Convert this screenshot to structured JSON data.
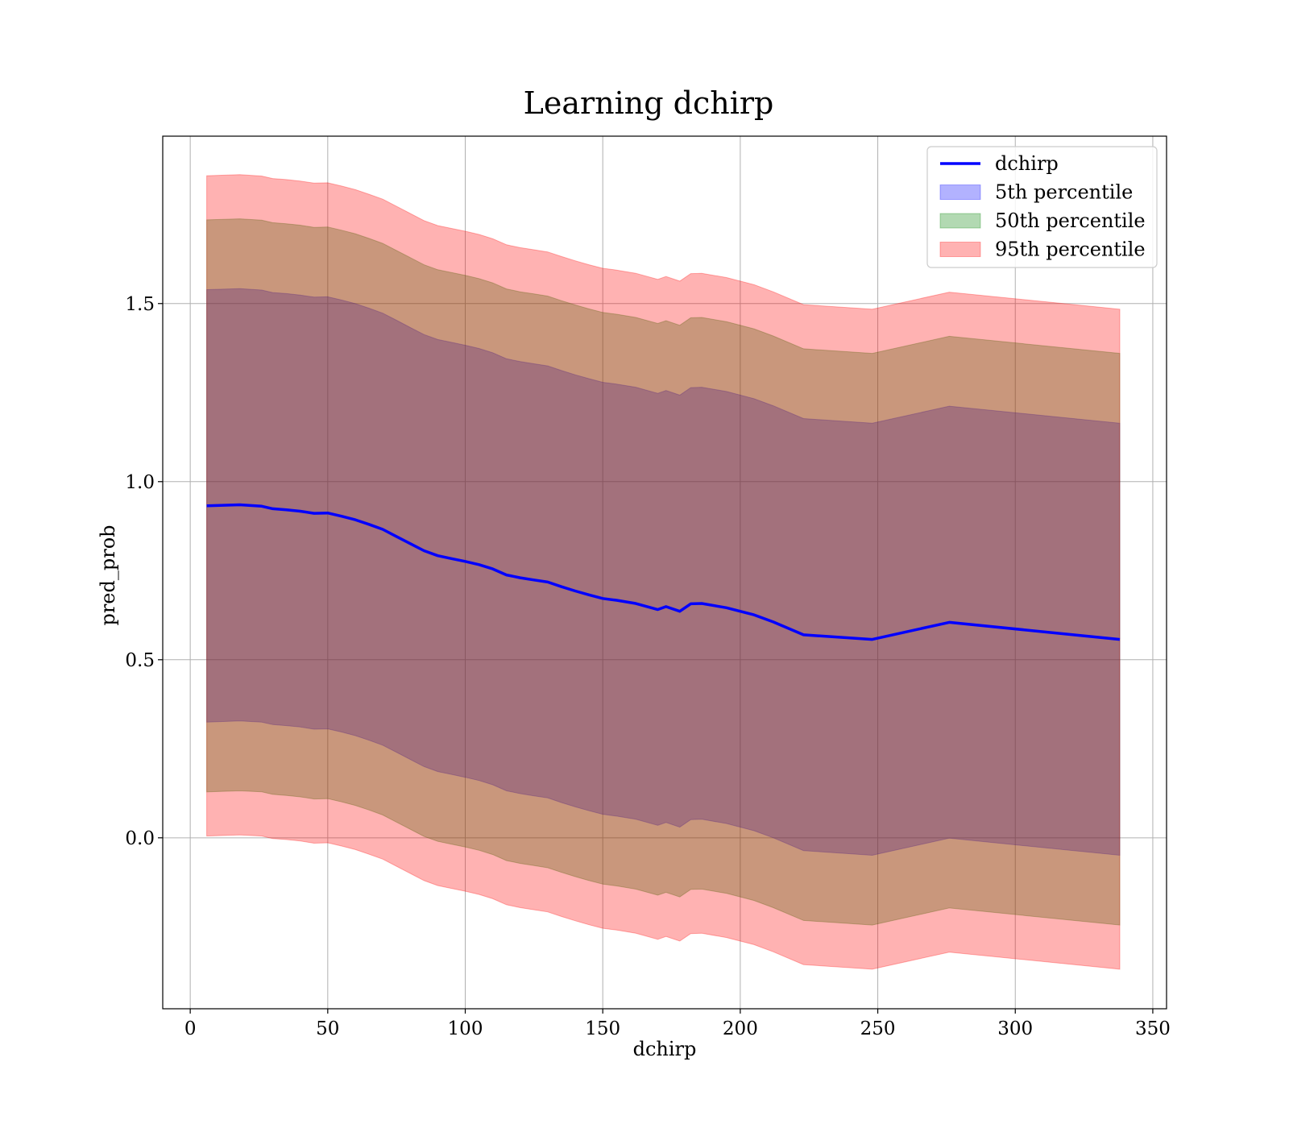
{
  "chart_data": {
    "type": "area",
    "title": "Learning dchirp",
    "xlabel": "dchirp",
    "ylabel": "pred_prob",
    "xlim": [
      -10,
      355
    ],
    "ylim": [
      -0.48,
      1.97
    ],
    "xticks": [
      0,
      50,
      100,
      150,
      200,
      250,
      300,
      350
    ],
    "yticks": [
      0.0,
      0.5,
      1.0,
      1.5
    ],
    "xtick_labels": [
      "0",
      "50",
      "100",
      "150",
      "200",
      "250",
      "300",
      "350"
    ],
    "ytick_labels": [
      "0.0",
      "0.5",
      "1.0",
      "1.5"
    ],
    "grid": true,
    "legend_position": "top-right",
    "x": [
      6,
      18,
      26,
      30,
      35,
      40,
      45,
      50,
      55,
      60,
      65,
      70,
      75,
      80,
      85,
      90,
      95,
      100,
      105,
      110,
      115,
      120,
      125,
      130,
      135,
      140,
      145,
      150,
      155,
      162,
      170,
      173,
      178,
      182,
      186,
      195,
      205,
      212,
      223,
      248,
      276,
      338
    ],
    "line": {
      "name": "dchirp",
      "color": "#0000ff",
      "values": [
        0.932,
        0.935,
        0.931,
        0.924,
        0.921,
        0.917,
        0.911,
        0.912,
        0.903,
        0.893,
        0.88,
        0.866,
        0.846,
        0.826,
        0.806,
        0.792,
        0.784,
        0.776,
        0.767,
        0.755,
        0.738,
        0.73,
        0.724,
        0.718,
        0.705,
        0.693,
        0.682,
        0.672,
        0.667,
        0.658,
        0.641,
        0.649,
        0.636,
        0.657,
        0.658,
        0.646,
        0.626,
        0.606,
        0.57,
        0.557,
        0.605,
        0.557
      ]
    },
    "bands": [
      {
        "name": "5th percentile",
        "color": "#0000ff",
        "opacity": 0.3,
        "lower": [
          0.325,
          0.328,
          0.325,
          0.318,
          0.315,
          0.311,
          0.305,
          0.306,
          0.297,
          0.287,
          0.274,
          0.26,
          0.24,
          0.22,
          0.2,
          0.186,
          0.178,
          0.17,
          0.161,
          0.149,
          0.132,
          0.124,
          0.118,
          0.112,
          0.099,
          0.087,
          0.076,
          0.066,
          0.061,
          0.052,
          0.035,
          0.043,
          0.03,
          0.051,
          0.052,
          0.04,
          0.02,
          0.0,
          -0.036,
          -0.049,
          -0.001,
          -0.049
        ],
        "upper": [
          1.539,
          1.542,
          1.538,
          1.531,
          1.528,
          1.524,
          1.518,
          1.519,
          1.51,
          1.5,
          1.487,
          1.473,
          1.453,
          1.433,
          1.413,
          1.399,
          1.391,
          1.383,
          1.374,
          1.362,
          1.345,
          1.337,
          1.331,
          1.325,
          1.312,
          1.3,
          1.289,
          1.279,
          1.274,
          1.265,
          1.248,
          1.256,
          1.243,
          1.264,
          1.265,
          1.253,
          1.233,
          1.213,
          1.177,
          1.164,
          1.212,
          1.164
        ]
      },
      {
        "name": "50th percentile",
        "color": "#008000",
        "opacity": 0.3,
        "lower": [
          0.129,
          0.132,
          0.129,
          0.122,
          0.119,
          0.115,
          0.109,
          0.11,
          0.101,
          0.091,
          0.078,
          0.064,
          0.044,
          0.024,
          0.004,
          -0.01,
          -0.018,
          -0.026,
          -0.035,
          -0.047,
          -0.064,
          -0.072,
          -0.078,
          -0.084,
          -0.097,
          -0.109,
          -0.12,
          -0.13,
          -0.135,
          -0.144,
          -0.161,
          -0.153,
          -0.166,
          -0.145,
          -0.144,
          -0.156,
          -0.176,
          -0.196,
          -0.232,
          -0.245,
          -0.197,
          -0.245
        ],
        "upper": [
          1.735,
          1.738,
          1.734,
          1.727,
          1.724,
          1.72,
          1.714,
          1.715,
          1.706,
          1.696,
          1.683,
          1.669,
          1.649,
          1.629,
          1.609,
          1.595,
          1.587,
          1.579,
          1.57,
          1.558,
          1.541,
          1.533,
          1.527,
          1.521,
          1.508,
          1.496,
          1.485,
          1.475,
          1.47,
          1.461,
          1.444,
          1.452,
          1.439,
          1.46,
          1.461,
          1.449,
          1.429,
          1.409,
          1.373,
          1.36,
          1.408,
          1.36
        ]
      },
      {
        "name": "95th percentile",
        "color": "#ff0000",
        "opacity": 0.3,
        "lower": [
          0.005,
          0.008,
          0.005,
          -0.002,
          -0.005,
          -0.009,
          -0.015,
          -0.014,
          -0.023,
          -0.033,
          -0.046,
          -0.06,
          -0.08,
          -0.1,
          -0.12,
          -0.134,
          -0.142,
          -0.15,
          -0.159,
          -0.171,
          -0.188,
          -0.196,
          -0.202,
          -0.208,
          -0.221,
          -0.233,
          -0.244,
          -0.254,
          -0.259,
          -0.268,
          -0.285,
          -0.277,
          -0.29,
          -0.269,
          -0.268,
          -0.28,
          -0.3,
          -0.32,
          -0.356,
          -0.369,
          -0.321,
          -0.369
        ],
        "upper": [
          1.859,
          1.862,
          1.858,
          1.851,
          1.848,
          1.844,
          1.838,
          1.839,
          1.83,
          1.82,
          1.807,
          1.793,
          1.773,
          1.753,
          1.733,
          1.719,
          1.711,
          1.703,
          1.694,
          1.682,
          1.665,
          1.657,
          1.651,
          1.645,
          1.632,
          1.62,
          1.609,
          1.599,
          1.594,
          1.585,
          1.568,
          1.576,
          1.563,
          1.584,
          1.585,
          1.573,
          1.553,
          1.533,
          1.497,
          1.484,
          1.532,
          1.484
        ]
      }
    ]
  }
}
